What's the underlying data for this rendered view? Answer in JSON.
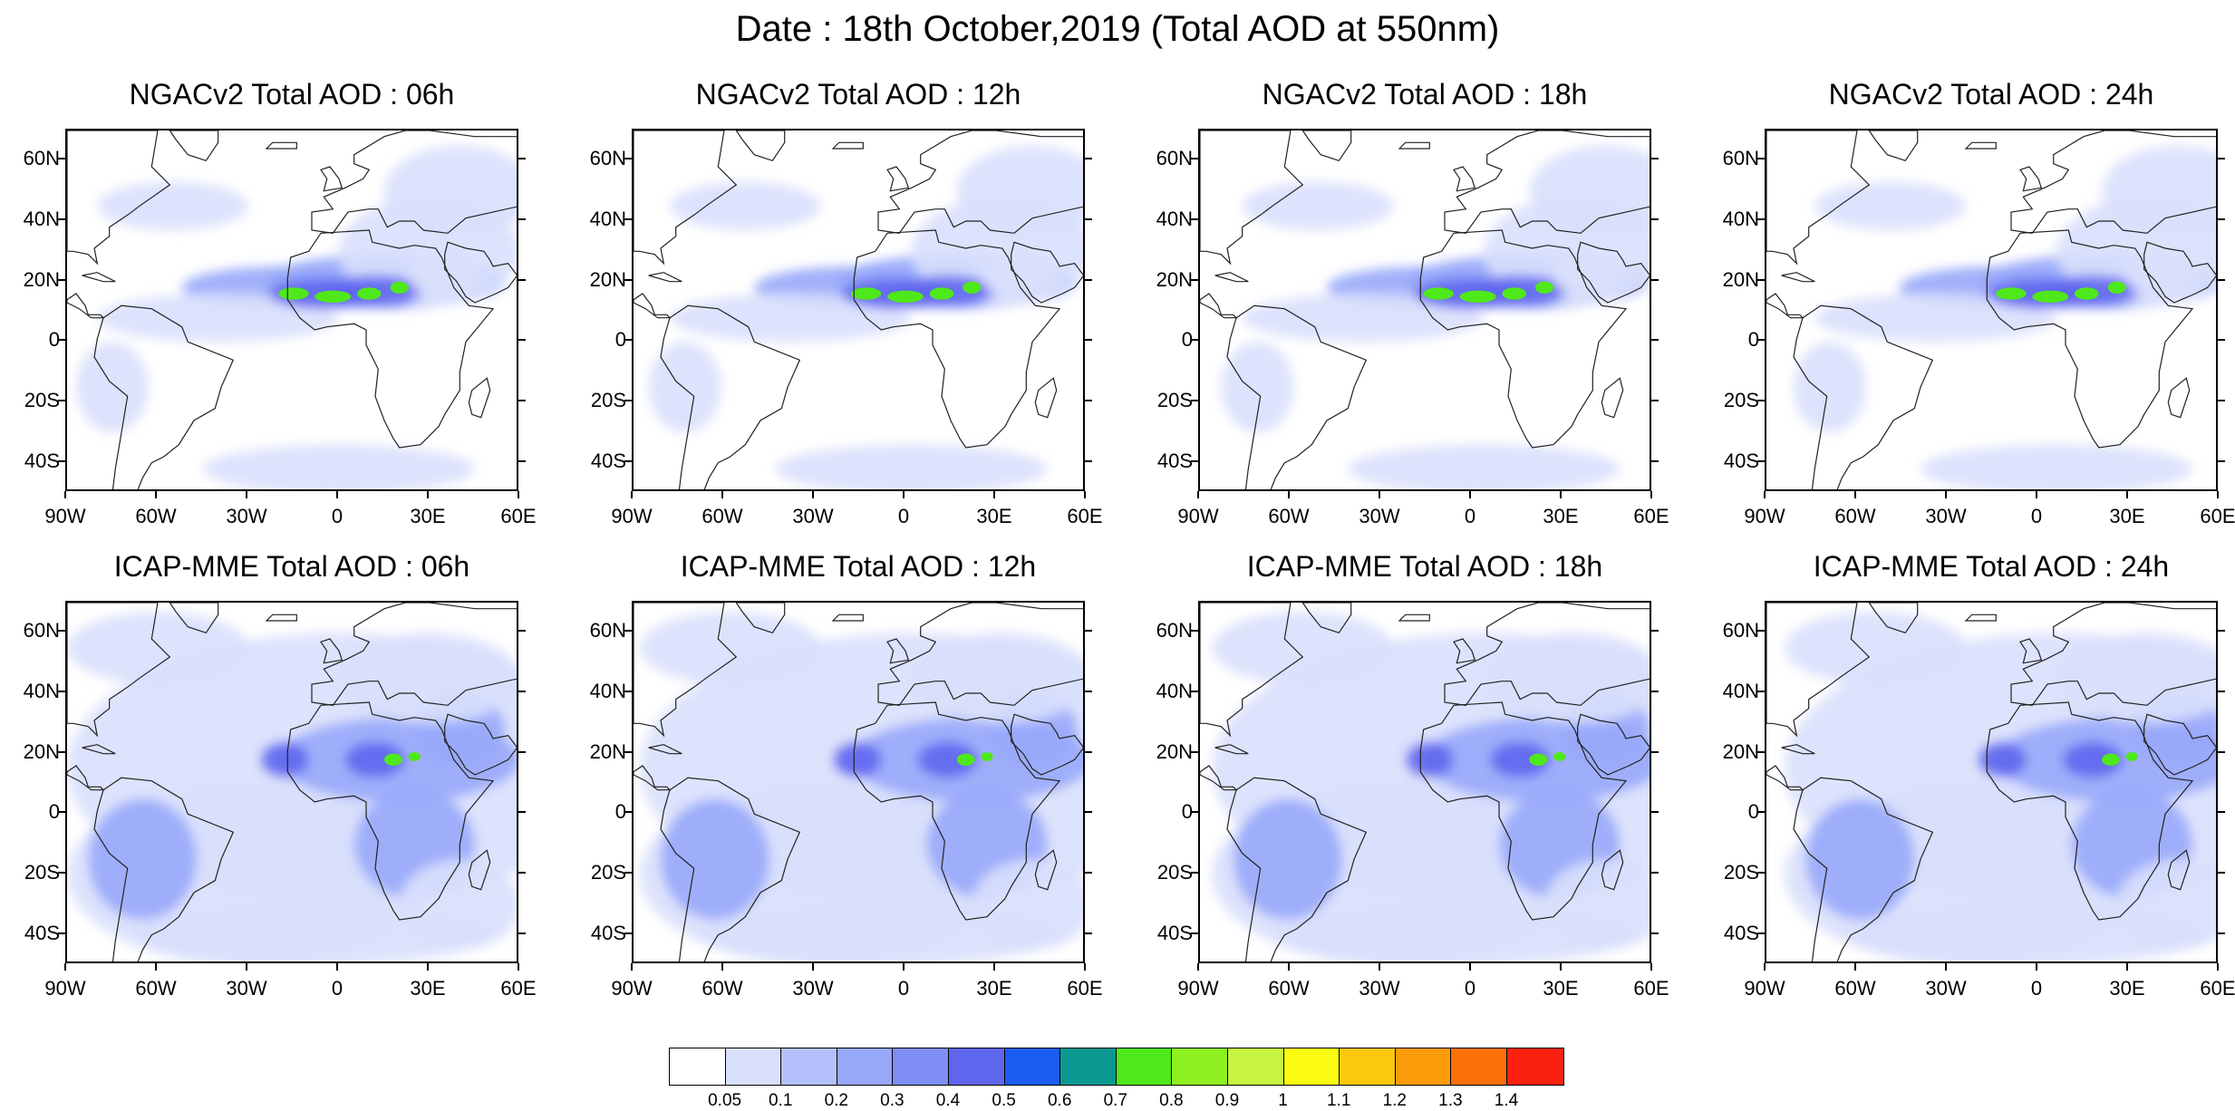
{
  "figure_title": "Date : 18th October,2019 (Total AOD at 550nm)",
  "panels": [
    {
      "title": "NGACv2 Total AOD : 06h",
      "model": "NGACv2",
      "hour": "06h"
    },
    {
      "title": "NGACv2 Total AOD : 12h",
      "model": "NGACv2",
      "hour": "12h"
    },
    {
      "title": "NGACv2 Total AOD : 18h",
      "model": "NGACv2",
      "hour": "18h"
    },
    {
      "title": "NGACv2 Total AOD : 24h",
      "model": "NGACv2",
      "hour": "24h"
    },
    {
      "title": "ICAP-MME Total AOD : 06h",
      "model": "ICAP-MME",
      "hour": "06h"
    },
    {
      "title": "ICAP-MME Total AOD : 12h",
      "model": "ICAP-MME",
      "hour": "12h"
    },
    {
      "title": "ICAP-MME Total AOD : 18h",
      "model": "ICAP-MME",
      "hour": "18h"
    },
    {
      "title": "ICAP-MME Total AOD : 24h",
      "model": "ICAP-MME",
      "hour": "24h"
    }
  ],
  "lat_labels": [
    "60N",
    "40N",
    "20N",
    "0",
    "20S",
    "40S"
  ],
  "lat_values": [
    60,
    40,
    20,
    0,
    -20,
    -40
  ],
  "lon_labels": [
    "90W",
    "60W",
    "30W",
    "0",
    "30E",
    "60E"
  ],
  "lon_values": [
    -90,
    -60,
    -30,
    0,
    30,
    60
  ],
  "map_extent": {
    "lon": [
      -90,
      60
    ],
    "lat": [
      -50,
      70
    ]
  },
  "colorbar": {
    "labels": [
      "0.05",
      "0.1",
      "0.2",
      "0.3",
      "0.4",
      "0.5",
      "0.6",
      "0.7",
      "0.8",
      "0.9",
      "1",
      "1.1",
      "1.2",
      "1.3",
      "1.4"
    ],
    "colors": [
      "#ffffff",
      "#d9e0fc",
      "#b3c0fb",
      "#98a8f9",
      "#7f8ef5",
      "#5f66ee",
      "#1a5cf0",
      "#0a9890",
      "#4fe81a",
      "#8ef020",
      "#c6f440",
      "#fcfc10",
      "#fcc80c",
      "#fc9c0a",
      "#fc7008",
      "#fc2010"
    ]
  },
  "style": {
    "land_outline": "#222222",
    "low_aod": "#d9e0fc",
    "mid_aod": "#98a8f9",
    "high_aod": "#5f66ee",
    "dust_core": "#4fe81a"
  }
}
